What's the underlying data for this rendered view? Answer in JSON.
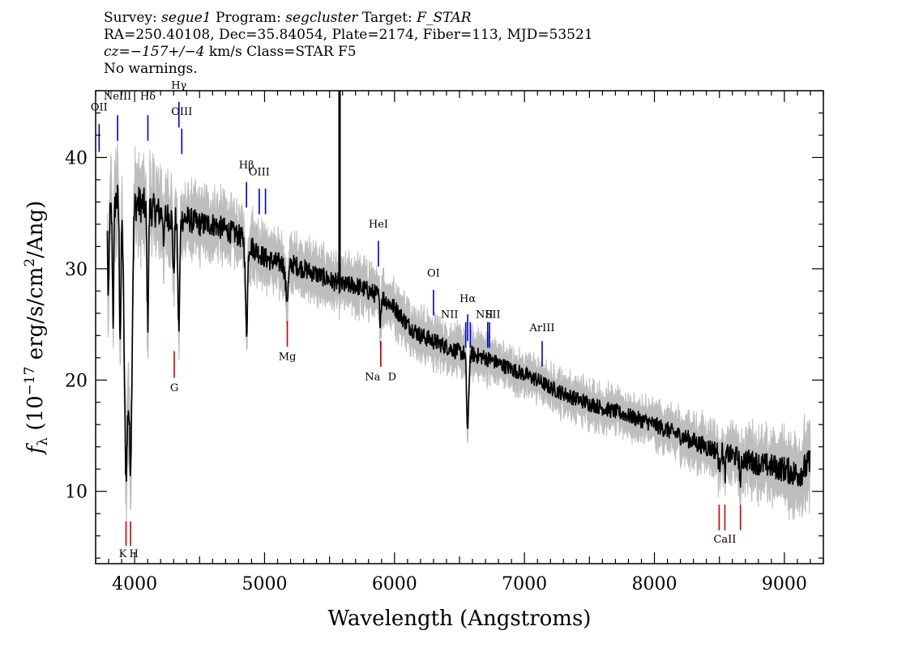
{
  "header": {
    "line1": {
      "survey_key": "Survey: ",
      "survey": "segue1",
      "program_key": " Program: ",
      "program": "segcluster",
      "target_key": " Target: ",
      "target": "F_STAR"
    },
    "line2": "RA=250.40108, Dec=35.84054, Plate=2174, Fiber=113, MJD=53521",
    "line3": {
      "cz": "cz=−157+/−4",
      "rest": " km/s Class=STAR F5"
    },
    "line4": "No warnings."
  },
  "chart_data": {
    "type": "line",
    "xlabel": "Wavelength (Angstroms)",
    "ylabel_parts": {
      "f": "f",
      "sub": "λ",
      "open": " (10",
      "exp": "−17",
      "mid": " erg/s/cm",
      "exp2": "2",
      "close": "/Ang)"
    },
    "xlim": [
      3700,
      9300
    ],
    "ylim": [
      3.5,
      46
    ],
    "xticks_major": [
      4000,
      5000,
      6000,
      7000,
      8000,
      9000
    ],
    "xtick_labels": [
      "4000",
      "5000",
      "6000",
      "7000",
      "8000",
      "9000"
    ],
    "yticks_major": [
      10,
      20,
      30,
      40
    ],
    "ytick_labels": [
      "10",
      "20",
      "30",
      "40"
    ],
    "grid": false,
    "series": [
      {
        "role": "error",
        "color": "#bdbdbd",
        "x": [
          3800,
          3850,
          3900,
          4000,
          4100,
          4200,
          4300,
          4400,
          4500,
          4600,
          4700,
          4800,
          4900,
          5000,
          5100,
          5200,
          5300,
          5400,
          5500,
          5600,
          5700,
          5800,
          5900,
          6000,
          6100,
          6200,
          6300,
          6400,
          6500,
          6600,
          6700,
          6800,
          6900,
          7000,
          7200,
          7400,
          7600,
          7800,
          8000,
          8200,
          8400,
          8600,
          8800,
          9000,
          9200
        ],
        "y": [
          3.0,
          3.0,
          3.0,
          3.1,
          3.0,
          2.6,
          2.4,
          2.2,
          2.1,
          2.0,
          2.0,
          1.9,
          1.9,
          1.8,
          1.8,
          1.7,
          1.7,
          1.6,
          1.6,
          1.6,
          1.6,
          1.6,
          1.6,
          1.5,
          1.5,
          1.5,
          1.5,
          1.4,
          1.4,
          1.4,
          1.4,
          1.3,
          1.3,
          1.3,
          1.3,
          1.3,
          1.3,
          1.3,
          1.4,
          1.5,
          1.6,
          1.8,
          2.0,
          2.2,
          2.6
        ]
      },
      {
        "role": "flux",
        "color": "#000000",
        "continuum": {
          "x": [
            3790,
            3850,
            3900,
            4000,
            4100,
            4200,
            4300,
            4400,
            4500,
            4600,
            4700,
            4800,
            4900,
            5000,
            5100,
            5200,
            5300,
            5400,
            5500,
            5600,
            5700,
            5800,
            5900,
            6000,
            6100,
            6200,
            6300,
            6400,
            6500,
            6600,
            6700,
            6800,
            6900,
            7000,
            7100,
            7200,
            7400,
            7600,
            7800,
            8000,
            8200,
            8400,
            8600,
            8800,
            9000,
            9100,
            9200
          ],
          "y": [
            34.0,
            36.0,
            36.5,
            36.0,
            35.5,
            35.0,
            34.5,
            34.5,
            34.0,
            34.0,
            33.5,
            33.0,
            32.0,
            31.0,
            30.5,
            30.5,
            30.0,
            29.5,
            29.0,
            28.5,
            28.5,
            28.0,
            27.5,
            26.5,
            25.0,
            24.0,
            23.5,
            23.0,
            22.5,
            22.3,
            22.0,
            21.5,
            21.0,
            20.5,
            20.0,
            19.3,
            18.3,
            17.5,
            16.8,
            16.0,
            15.0,
            14.0,
            13.2,
            12.5,
            12.0,
            11.5,
            12.5
          ]
        },
        "absorption": [
          {
            "x": 3934,
            "depth": 24,
            "width": 14
          },
          {
            "x": 3969,
            "depth": 22,
            "width": 12
          },
          {
            "x": 3889,
            "depth": 12,
            "width": 6
          },
          {
            "x": 3835,
            "depth": 10,
            "width": 5
          },
          {
            "x": 3798,
            "depth": 8,
            "width": 4
          },
          {
            "x": 4101,
            "depth": 10,
            "width": 6
          },
          {
            "x": 4226,
            "depth": 3,
            "width": 4
          },
          {
            "x": 4300,
            "depth": 5,
            "width": 6
          },
          {
            "x": 4340,
            "depth": 10,
            "width": 7
          },
          {
            "x": 4861,
            "depth": 8,
            "width": 8
          },
          {
            "x": 5172,
            "depth": 3,
            "width": 12
          },
          {
            "x": 5890,
            "depth": 2,
            "width": 6
          },
          {
            "x": 6563,
            "depth": 7,
            "width": 8
          },
          {
            "x": 8498,
            "depth": 1.5,
            "width": 6
          },
          {
            "x": 8542,
            "depth": 2,
            "width": 6
          },
          {
            "x": 8662,
            "depth": 2,
            "width": 6
          }
        ],
        "spike": {
          "x": 5577,
          "ymin": 29,
          "ymax": 46
        }
      }
    ],
    "emission_labels": [
      {
        "label": "OII",
        "x": 3727,
        "y0": 40.5,
        "y1": 43.0,
        "text_y": 44.2,
        "color": "#0000cc"
      },
      {
        "label": "NeIII",
        "x": 3869,
        "y0": 41.5,
        "y1": 43.8,
        "text_y": 45.2,
        "color": "#0000cc"
      },
      {
        "label": "Hδ",
        "x": 4102,
        "y0": 41.5,
        "y1": 43.8,
        "text_y": 45.2,
        "color": "#0000cc"
      },
      {
        "label": "Hγ",
        "x": 4341,
        "y0": 42.7,
        "y1": 45.0,
        "text_y": 46.2,
        "color": "#0000cc"
      },
      {
        "label": "OIII",
        "x": 4363,
        "y0": 40.3,
        "y1": 42.6,
        "text_y": 43.8,
        "color": "#0000cc"
      },
      {
        "label": "Hβ",
        "x": 4861,
        "y0": 35.5,
        "y1": 37.8,
        "text_y": 39.0,
        "color": "#0000cc"
      },
      {
        "label": "OIII",
        "x": 4959,
        "y0": 34.9,
        "y1": 37.2,
        "text_y": 38.4,
        "color": "#0000cc"
      },
      {
        "label": "",
        "x": 5007,
        "y0": 34.9,
        "y1": 37.2,
        "text_y": 38.4,
        "color": "#0000cc"
      },
      {
        "label": "HeI",
        "x": 5876,
        "y0": 30.2,
        "y1": 32.5,
        "text_y": 33.7,
        "color": "#0000cc"
      },
      {
        "label": "OI",
        "x": 6300,
        "y0": 25.8,
        "y1": 28.1,
        "text_y": 29.3,
        "color": "#0000cc"
      },
      {
        "label": "NII",
        "x": 6548,
        "y0": 22.9,
        "y1": 25.2,
        "text_y": 25.6,
        "color": "#0000cc"
      },
      {
        "label": "Hα",
        "x": 6563,
        "y0": 23.5,
        "y1": 25.9,
        "text_y": 27.0,
        "color": "#0000cc"
      },
      {
        "label": "",
        "x": 6583,
        "y0": 22.9,
        "y1": 25.2,
        "text_y": 25.6,
        "color": "#0000cc"
      },
      {
        "label": "NII",
        "x": 6717,
        "y0": 22.9,
        "y1": 25.2,
        "text_y": 25.6,
        "color": "#0000cc"
      },
      {
        "label": "SII",
        "x": 6731,
        "y0": 22.9,
        "y1": 25.2,
        "text_y": 25.6,
        "color": "#0000cc"
      },
      {
        "label": "ArIII",
        "x": 7136,
        "y0": 21.2,
        "y1": 23.5,
        "text_y": 24.4,
        "color": "#0000cc"
      }
    ],
    "absorption_labels": [
      {
        "label": "K",
        "x": 3934,
        "y0": 5.1,
        "y1": 7.3,
        "text_y": 4.1,
        "color": "#cc0000"
      },
      {
        "label": "H",
        "x": 3969,
        "y0": 5.1,
        "y1": 7.3,
        "text_y": 4.1,
        "color": "#cc0000"
      },
      {
        "label": "G",
        "x": 4305,
        "y0": 20.2,
        "y1": 22.6,
        "text_y": 19.0,
        "color": "#cc0000"
      },
      {
        "label": "Mg",
        "x": 5175,
        "y0": 23.0,
        "y1": 25.3,
        "text_y": 21.8,
        "color": "#cc0000"
      },
      {
        "label": "Na",
        "x": 5894,
        "y0": 21.2,
        "y1": 23.5,
        "text_y": 20.0,
        "color": "#cc0000"
      },
      {
        "label": "D",
        "x": 5894,
        "y0": 21.2,
        "y1": 23.5,
        "text_y": 20.0,
        "color": "#cc0000"
      },
      {
        "label": "",
        "x": 8498,
        "y0": 6.5,
        "y1": 8.8,
        "text_y": 5.4,
        "color": "#cc0000"
      },
      {
        "label": "CaII",
        "x": 8542,
        "y0": 6.5,
        "y1": 8.8,
        "text_y": 5.4,
        "color": "#cc0000"
      },
      {
        "label": "",
        "x": 8662,
        "y0": 6.5,
        "y1": 8.8,
        "text_y": 5.4,
        "color": "#cc0000"
      }
    ]
  }
}
